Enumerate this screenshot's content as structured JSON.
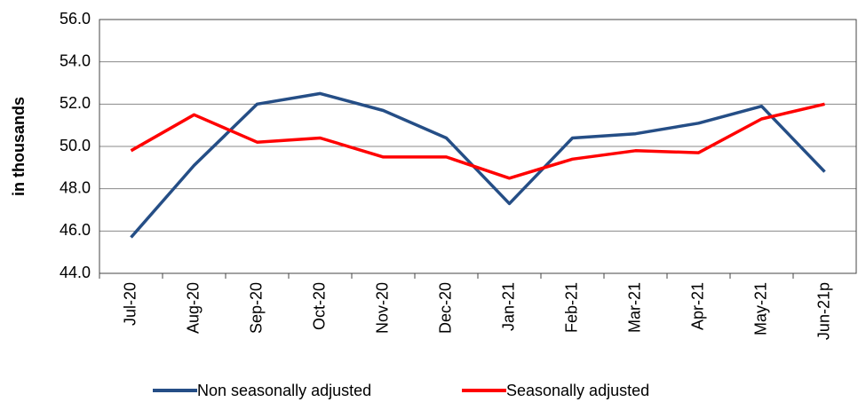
{
  "chart_data": {
    "type": "line",
    "y_label": "in thousands",
    "categories": [
      "Jul-20",
      "Aug-20",
      "Sep-20",
      "Oct-20",
      "Nov-20",
      "Dec-20",
      "Jan-21",
      "Feb-21",
      "Mar-21",
      "Apr-21",
      "May-21",
      "Jun-21p"
    ],
    "series": [
      {
        "name": "Non seasonally adjusted",
        "color": "#254e86",
        "values": [
          45.7,
          49.1,
          52.0,
          52.5,
          51.7,
          50.4,
          47.3,
          50.4,
          50.6,
          51.1,
          51.9,
          48.8
        ]
      },
      {
        "name": "Seasonally adjusted",
        "color": "#ff0000",
        "values": [
          49.8,
          51.5,
          50.2,
          50.4,
          49.5,
          49.5,
          48.5,
          49.4,
          49.8,
          49.7,
          51.3,
          52.0
        ]
      }
    ],
    "ylim": [
      44,
      56
    ],
    "yticks": [
      {
        "value": 44,
        "label": "44.0"
      },
      {
        "value": 46,
        "label": "46.0"
      },
      {
        "value": 48,
        "label": "48.0"
      },
      {
        "value": 50,
        "label": "50.0"
      },
      {
        "value": 52,
        "label": "52.0"
      },
      {
        "value": 54,
        "label": "54.0"
      },
      {
        "value": 56,
        "label": "56.0"
      }
    ],
    "grid": true,
    "legend": "bottom"
  }
}
